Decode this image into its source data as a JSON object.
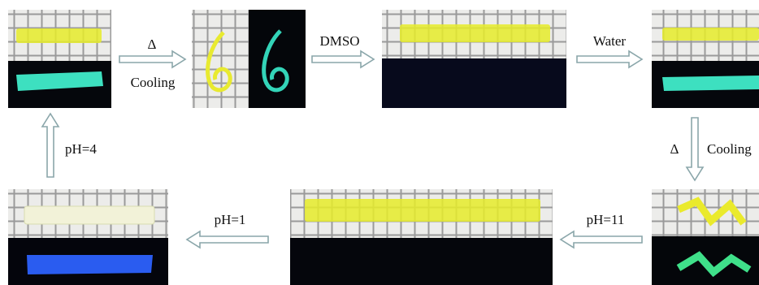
{
  "steps": [
    {
      "labels": [
        "Δ",
        "Cooling"
      ]
    },
    {
      "labels": [
        "DMSO"
      ]
    },
    {
      "labels": [
        "Water"
      ]
    },
    {
      "labels": [
        "Δ",
        "Cooling"
      ]
    },
    {
      "labels": [
        "pH=11"
      ]
    },
    {
      "labels": [
        "pH=1"
      ]
    },
    {
      "labels": [
        "pH=4"
      ]
    }
  ]
}
